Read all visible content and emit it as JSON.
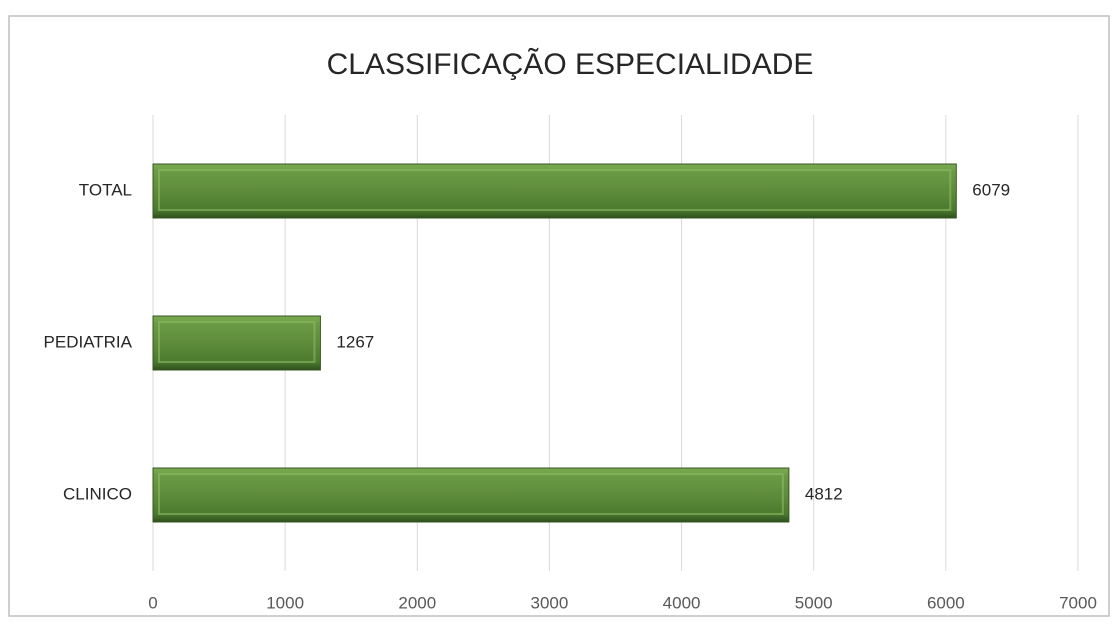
{
  "chart_data": {
    "type": "bar",
    "orientation": "horizontal",
    "title": "CLASSIFICAÇÃO ESPECIALIDADE",
    "categories": [
      "CLINICO",
      "PEDIATRIA",
      "TOTAL"
    ],
    "values": [
      4812,
      1267,
      6079
    ],
    "color": "#548235",
    "xlim": [
      0,
      7000
    ],
    "xticks": [
      0,
      1000,
      2000,
      3000,
      4000,
      5000,
      6000,
      7000
    ],
    "grid": true
  }
}
